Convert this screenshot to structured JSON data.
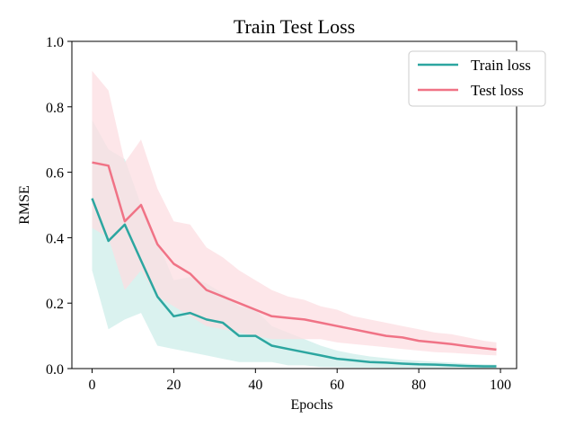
{
  "chart_data": {
    "type": "line",
    "title": "Train Test Loss",
    "xlabel": "Epochs",
    "ylabel": "RMSE",
    "xlim": [
      -4.95,
      103.95
    ],
    "ylim": [
      0,
      1.0
    ],
    "xticks": [
      0,
      20,
      40,
      60,
      80,
      100
    ],
    "yticks": [
      0.0,
      0.2,
      0.4,
      0.6,
      0.8,
      1.0
    ],
    "xtick_labels": [
      "0",
      "20",
      "40",
      "60",
      "80",
      "100"
    ],
    "ytick_labels": [
      "0.0",
      "0.2",
      "0.4",
      "0.6",
      "0.8",
      "1.0"
    ],
    "grid": false,
    "legend_position": "top-right",
    "series": [
      {
        "name": "Train loss",
        "color": "#2ca6a0",
        "band_color": "#cdeeea",
        "x": [
          0,
          4,
          8,
          12,
          16,
          20,
          24,
          28,
          32,
          36,
          40,
          44,
          48,
          52,
          56,
          60,
          64,
          68,
          72,
          76,
          80,
          84,
          88,
          92,
          96,
          99
        ],
        "y": [
          0.52,
          0.39,
          0.44,
          0.33,
          0.22,
          0.16,
          0.17,
          0.15,
          0.14,
          0.1,
          0.1,
          0.07,
          0.06,
          0.05,
          0.04,
          0.03,
          0.025,
          0.02,
          0.018,
          0.015,
          0.013,
          0.012,
          0.01,
          0.008,
          0.007,
          0.007
        ],
        "y_lower": [
          0.3,
          0.12,
          0.15,
          0.17,
          0.07,
          0.06,
          0.05,
          0.04,
          0.03,
          0.02,
          0.02,
          0.02,
          0.01,
          0.01,
          0.005,
          0.004,
          0.003,
          0.003,
          0.002,
          0.002,
          0.002,
          0.002,
          0.002,
          0.001,
          0.001,
          0.001
        ],
        "y_upper": [
          0.76,
          0.67,
          0.64,
          0.5,
          0.39,
          0.27,
          0.28,
          0.26,
          0.23,
          0.19,
          0.18,
          0.13,
          0.11,
          0.09,
          0.07,
          0.055,
          0.045,
          0.037,
          0.032,
          0.027,
          0.024,
          0.021,
          0.018,
          0.015,
          0.013,
          0.012
        ]
      },
      {
        "name": "Test loss",
        "color": "#f07386",
        "band_color": "#fcdde2",
        "x": [
          0,
          4,
          8,
          12,
          16,
          20,
          24,
          28,
          32,
          36,
          40,
          44,
          48,
          52,
          56,
          60,
          64,
          68,
          72,
          76,
          80,
          84,
          88,
          92,
          96,
          99
        ],
        "y": [
          0.63,
          0.62,
          0.45,
          0.5,
          0.38,
          0.32,
          0.29,
          0.24,
          0.22,
          0.2,
          0.18,
          0.16,
          0.155,
          0.15,
          0.14,
          0.13,
          0.12,
          0.11,
          0.1,
          0.095,
          0.085,
          0.08,
          0.075,
          0.068,
          0.062,
          0.058
        ],
        "y_lower": [
          0.43,
          0.4,
          0.24,
          0.3,
          0.22,
          0.19,
          0.16,
          0.13,
          0.12,
          0.11,
          0.1,
          0.09,
          0.09,
          0.09,
          0.09,
          0.08,
          0.075,
          0.07,
          0.065,
          0.06,
          0.055,
          0.05,
          0.048,
          0.045,
          0.042,
          0.04
        ],
        "y_upper": [
          0.91,
          0.85,
          0.63,
          0.7,
          0.55,
          0.45,
          0.44,
          0.37,
          0.34,
          0.3,
          0.27,
          0.24,
          0.22,
          0.21,
          0.19,
          0.18,
          0.16,
          0.15,
          0.14,
          0.13,
          0.12,
          0.11,
          0.105,
          0.095,
          0.085,
          0.08
        ]
      }
    ]
  }
}
